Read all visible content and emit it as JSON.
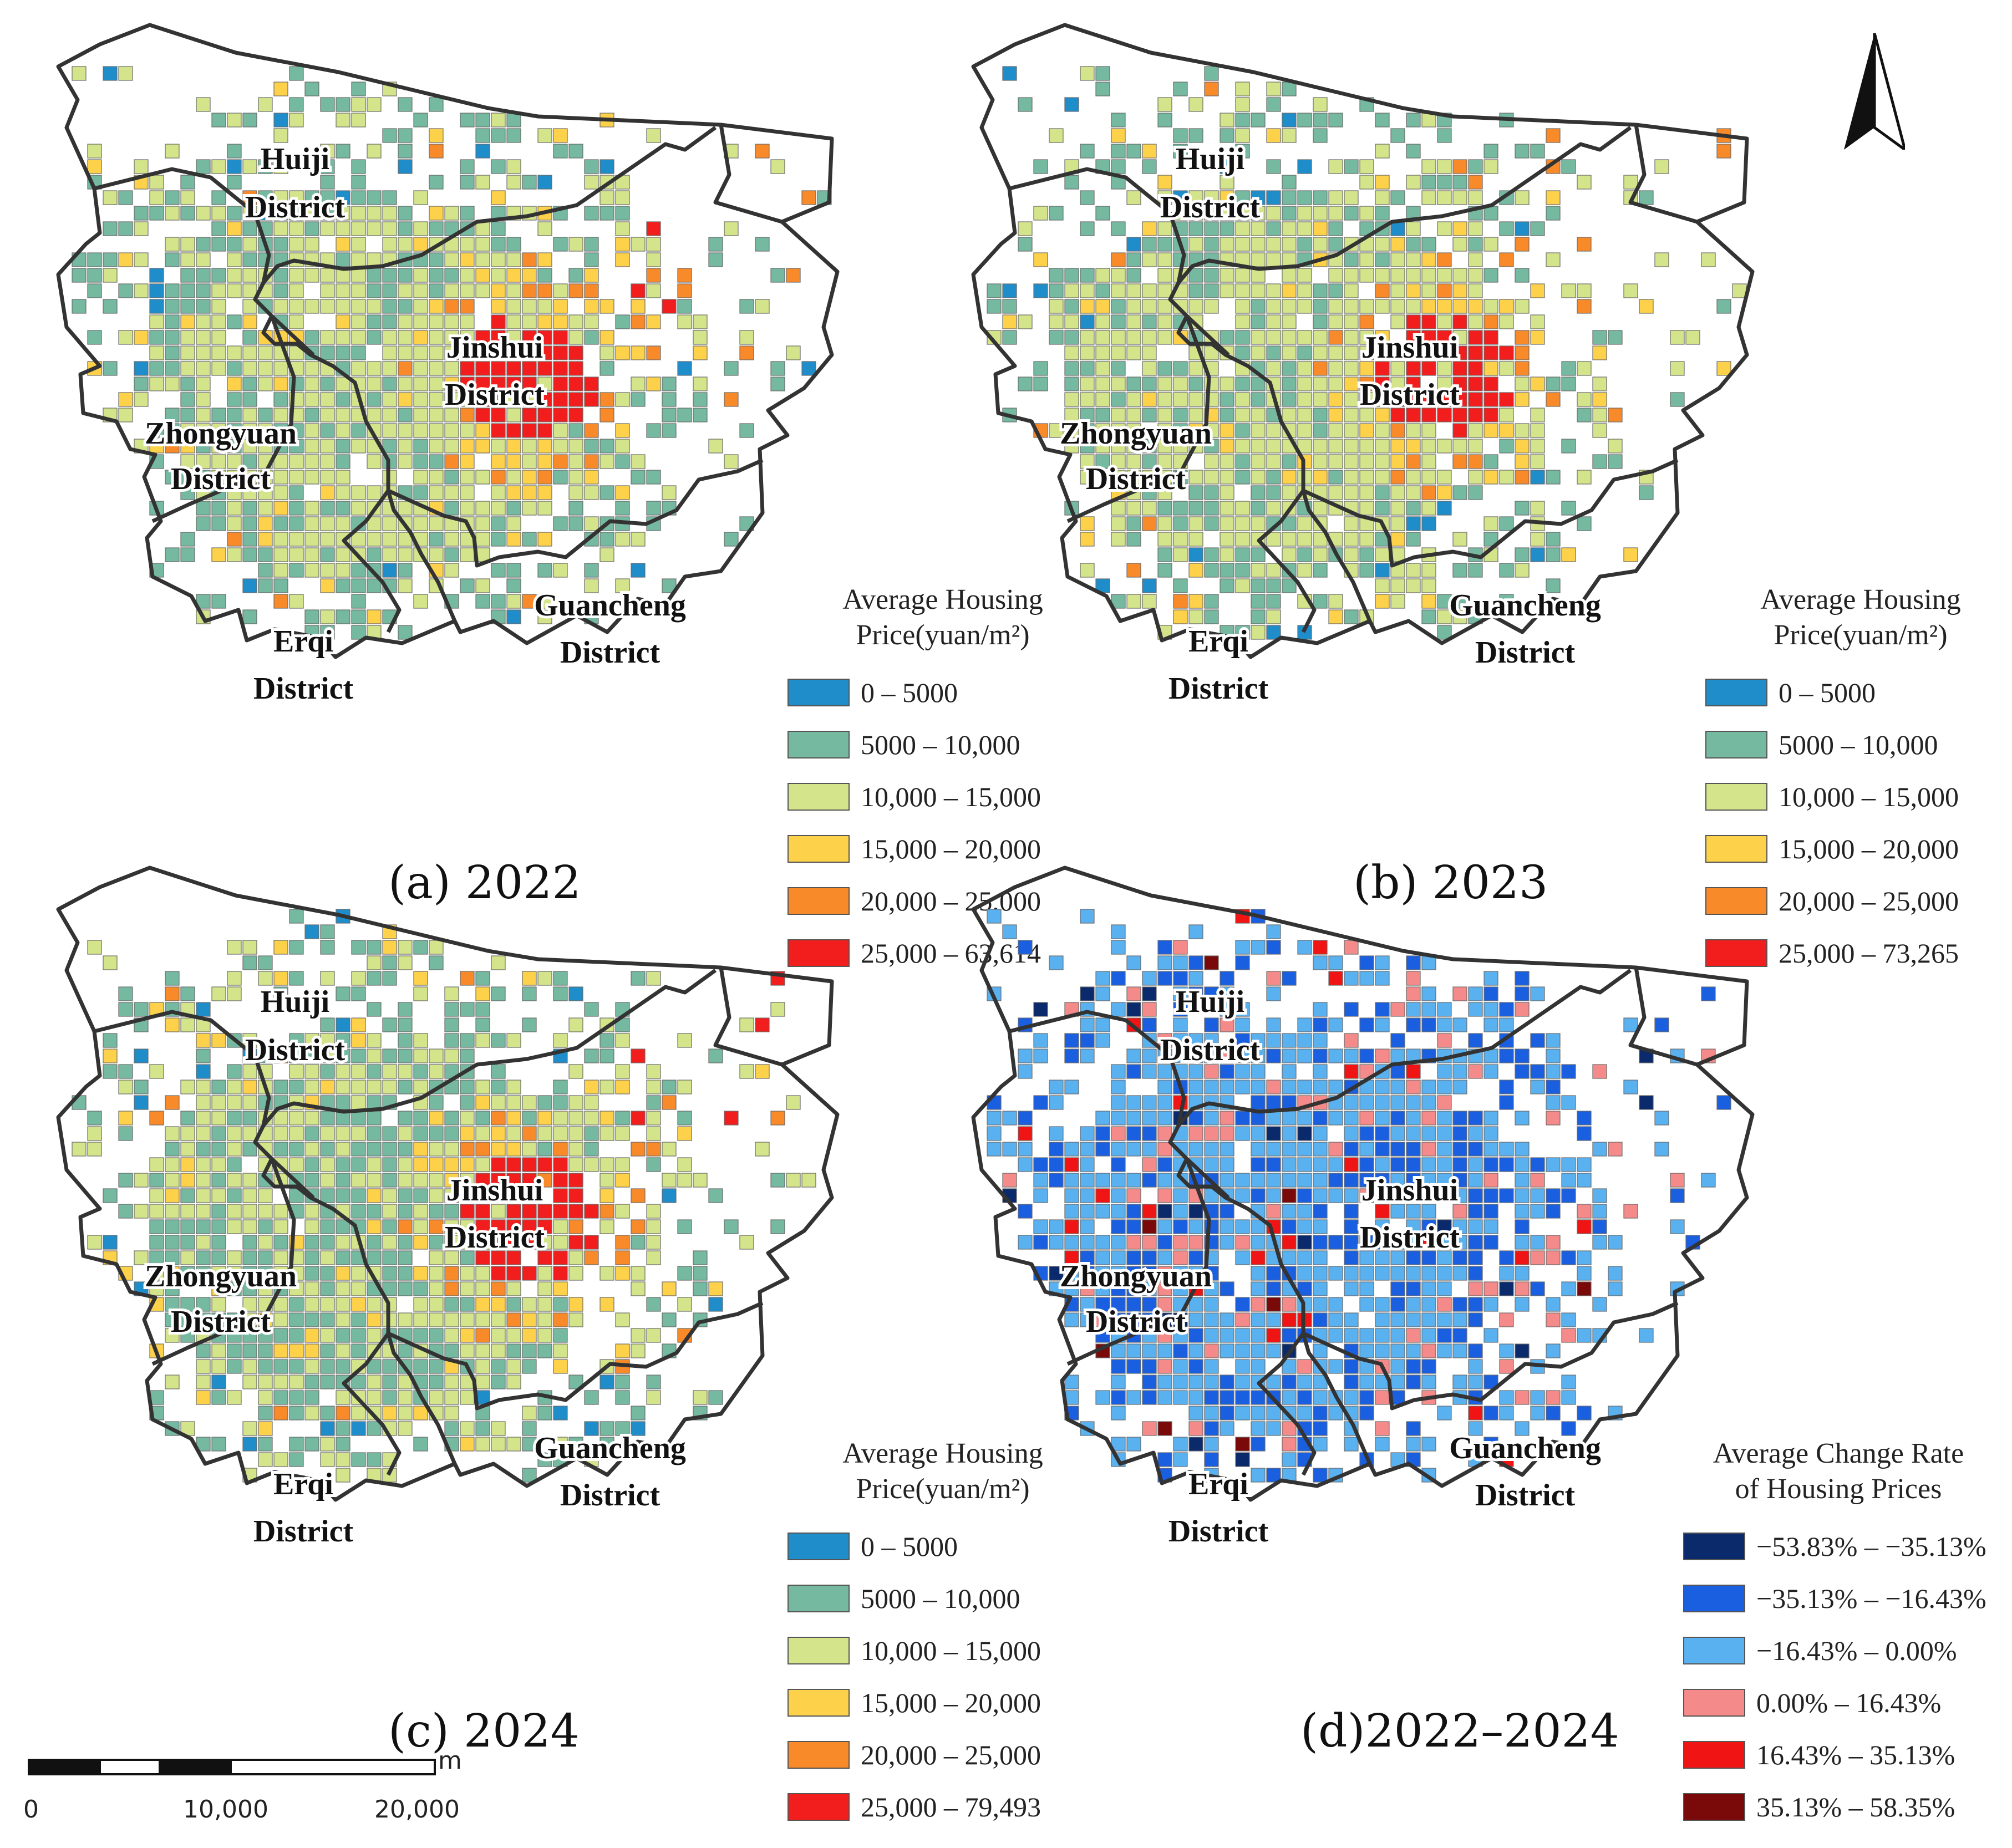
{
  "maps": [
    {
      "id": "a",
      "caption": "(a) 2022",
      "legend": {
        "title_lines": [
          "Average Housing",
          "Price(yuan/m²)"
        ],
        "classes": [
          {
            "label": "0 – 5000",
            "color": "#1f8dc9"
          },
          {
            "label": "5000 – 10,000",
            "color": "#74b9a0"
          },
          {
            "label": "10,000 – 15,000",
            "color": "#d3e48a"
          },
          {
            "label": "15,000 – 20,000",
            "color": "#fdd24a"
          },
          {
            "label": "20,000 – 25,000",
            "color": "#f98a2a"
          },
          {
            "label": "25,000 – 63,614",
            "color": "#f21d1d"
          }
        ]
      }
    },
    {
      "id": "b",
      "caption": "(b) 2023",
      "legend": {
        "title_lines": [
          "Average Housing",
          "Price(yuan/m²)"
        ],
        "classes": [
          {
            "label": "0 – 5000",
            "color": "#1f8dc9"
          },
          {
            "label": "5000 – 10,000",
            "color": "#74b9a0"
          },
          {
            "label": "10,000 – 15,000",
            "color": "#d3e48a"
          },
          {
            "label": "15,000 – 20,000",
            "color": "#fdd24a"
          },
          {
            "label": "20,000 – 25,000",
            "color": "#f98a2a"
          },
          {
            "label": "25,000 – 73,265",
            "color": "#f21d1d"
          }
        ]
      }
    },
    {
      "id": "c",
      "caption": "(c) 2024",
      "legend": {
        "title_lines": [
          "Average Housing",
          "Price(yuan/m²)"
        ],
        "classes": [
          {
            "label": "0 – 5000",
            "color": "#1f8dc9"
          },
          {
            "label": "5000 – 10,000",
            "color": "#74b9a0"
          },
          {
            "label": "10,000 – 15,000",
            "color": "#d3e48a"
          },
          {
            "label": "15,000 – 20,000",
            "color": "#fdd24a"
          },
          {
            "label": "20,000 – 25,000",
            "color": "#f98a2a"
          },
          {
            "label": "25,000 – 79,493",
            "color": "#f21d1d"
          }
        ]
      }
    },
    {
      "id": "d",
      "caption": "(d)2022–2024",
      "legend": {
        "title_lines": [
          "Average Change Rate",
          "of Housing Prices"
        ],
        "classes": [
          {
            "label": "−53.83% – −35.13%",
            "color": "#0b2a6b"
          },
          {
            "label": "−35.13% – −16.43%",
            "color": "#1a5fe0"
          },
          {
            "label": "−16.43% – 0.00%",
            "color": "#59b1f0"
          },
          {
            "label": "0.00% – 16.43%",
            "color": "#f58a8a"
          },
          {
            "label": "16.43% – 35.13%",
            "color": "#f01414"
          },
          {
            "label": "35.13% – 58.35%",
            "color": "#7a0a0a"
          }
        ]
      }
    }
  ],
  "districts": [
    {
      "line1": "Huiji",
      "line2": "District"
    },
    {
      "line1": "Jinshui",
      "line2": "District"
    },
    {
      "line1": "Zhongyuan",
      "line2": "District"
    },
    {
      "line1": "Erqi",
      "line2": "District"
    },
    {
      "line1": "Guancheng",
      "line2": "District"
    }
  ],
  "scale_bar": {
    "unit": "m",
    "ticks": [
      "0",
      "10,000",
      "20,000"
    ]
  },
  "north_arrow": "north-arrow-icon"
}
